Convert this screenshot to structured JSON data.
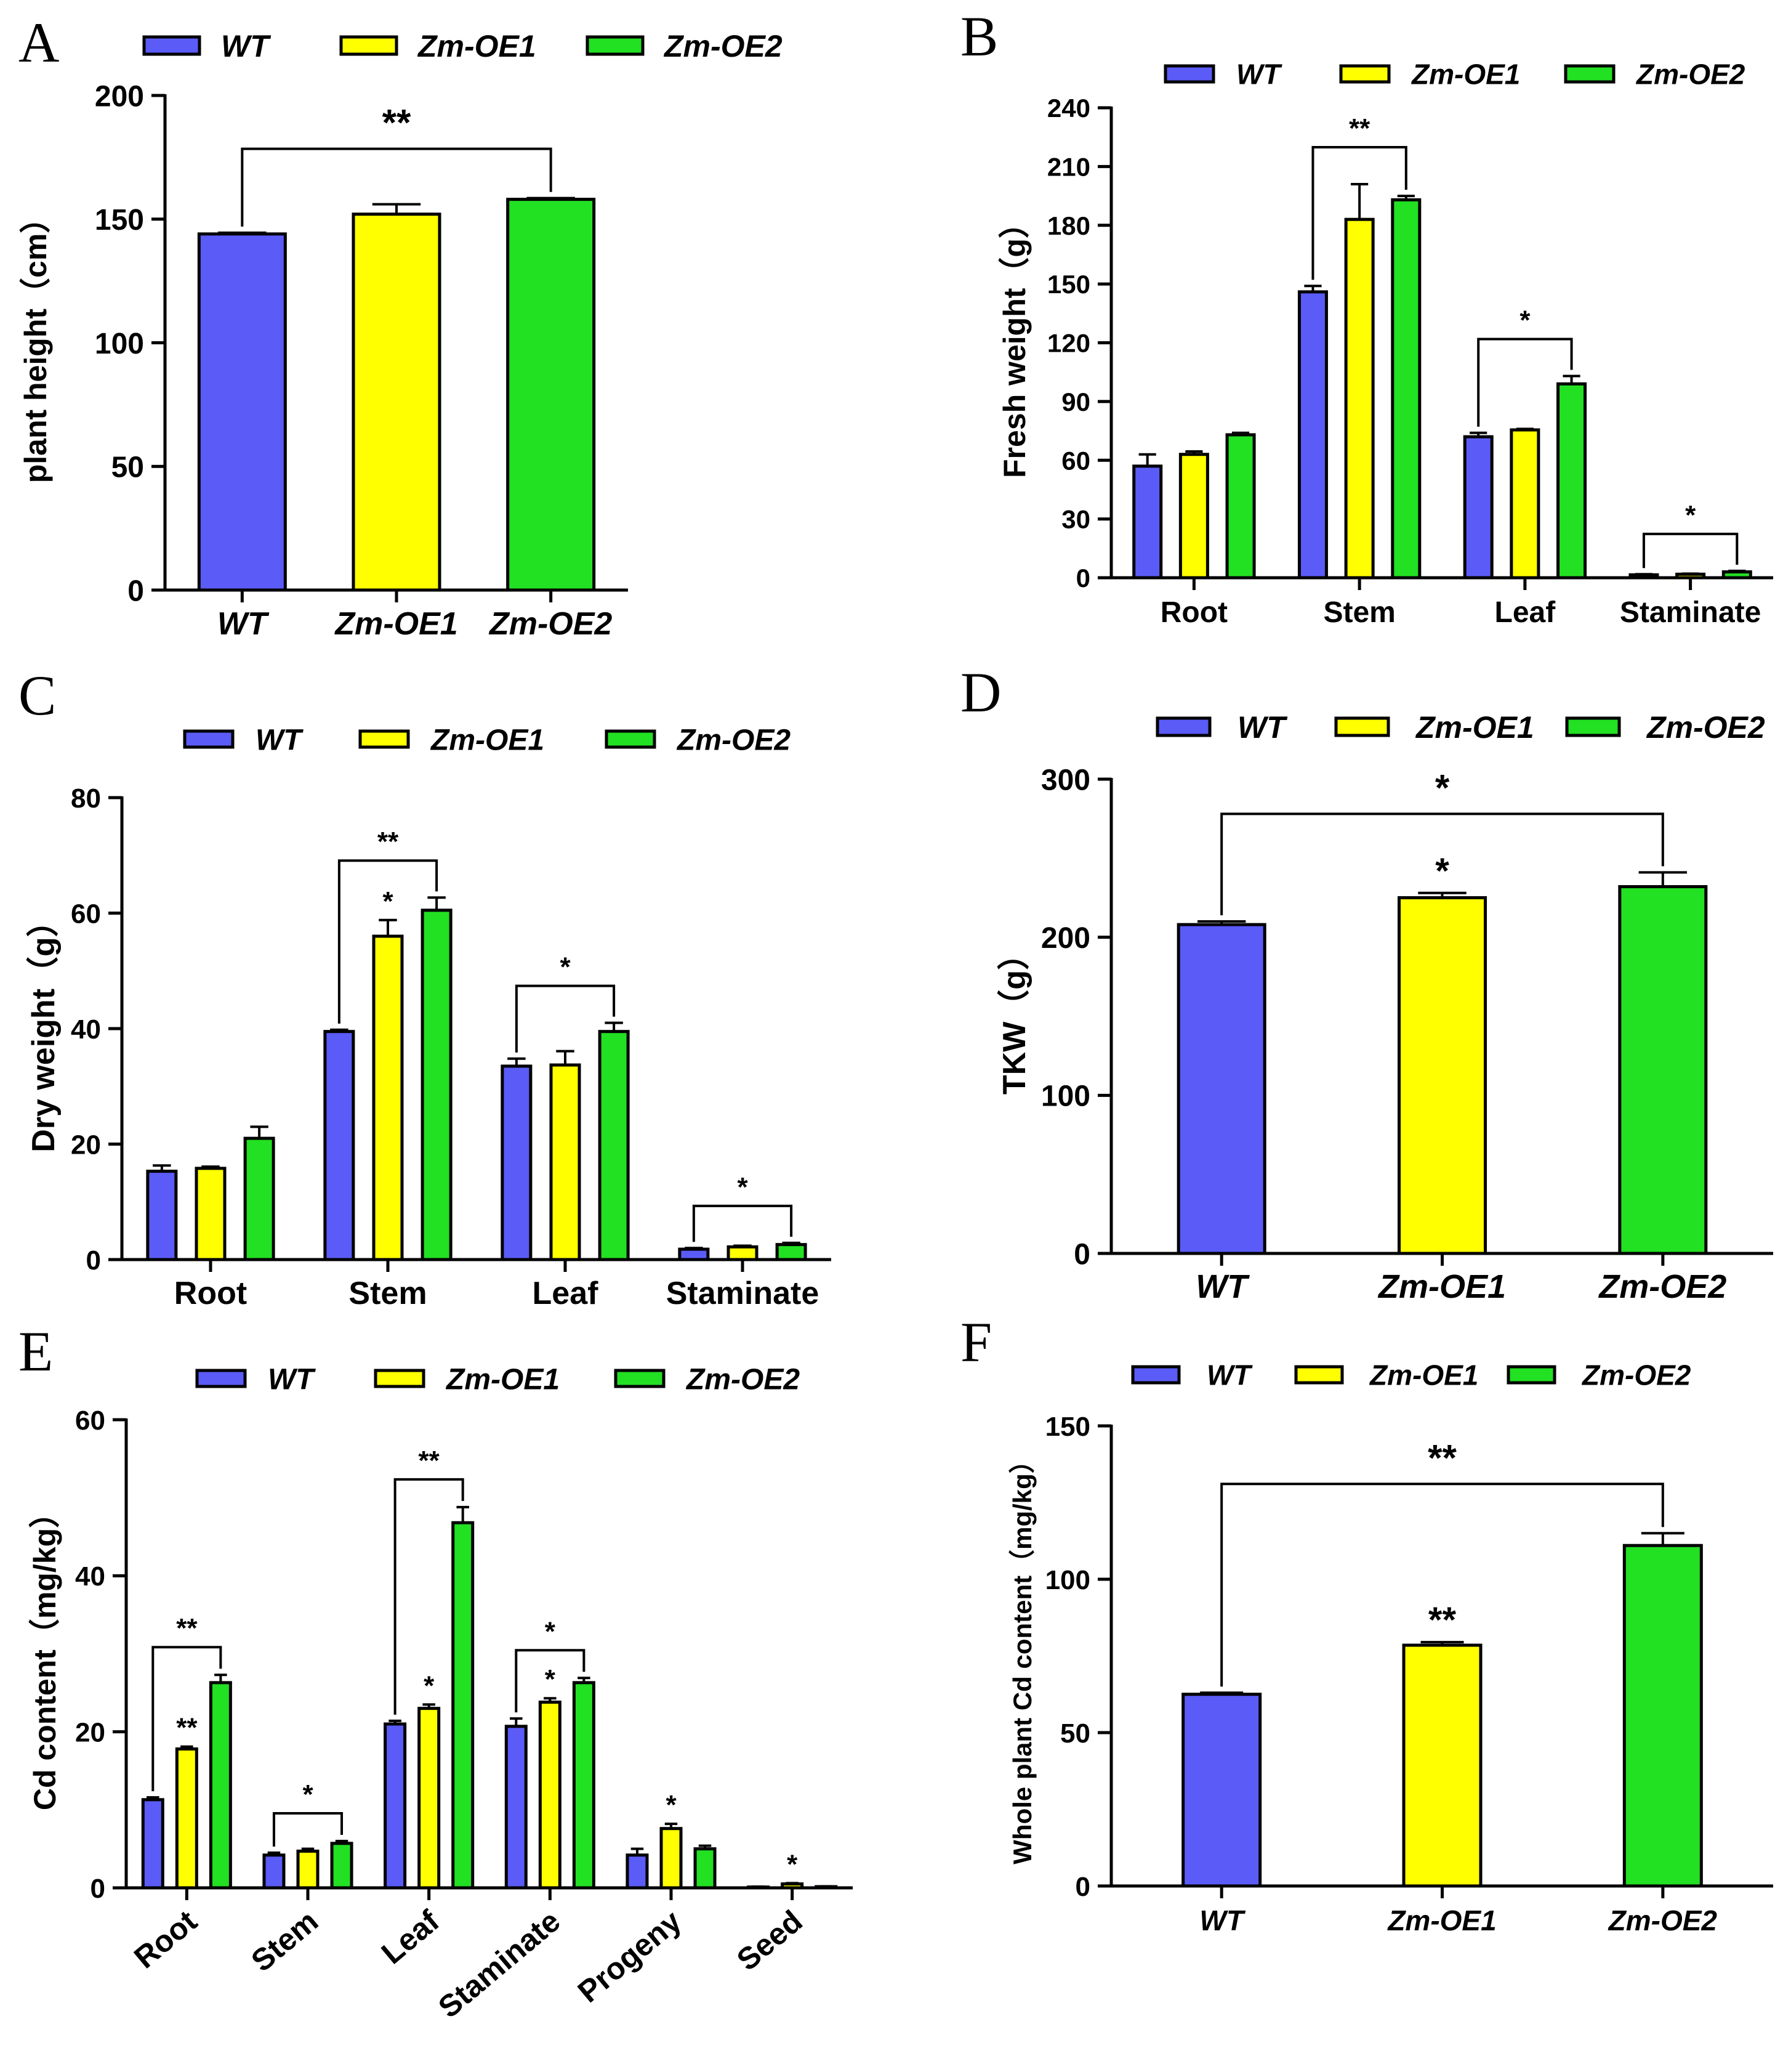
{
  "colors": {
    "WT": "#5b5bf7",
    "Zm-OE1": "#ffff00",
    "Zm-OE2": "#22e022"
  },
  "chart_data": [
    {
      "panel": "A",
      "type": "bar",
      "title": "",
      "xlabel": "",
      "ylabel": "plant height（cm）",
      "ylim": [
        0,
        200
      ],
      "yticks": [
        "0",
        "50",
        "100",
        "150",
        "200"
      ],
      "legend": [
        "WT",
        "Zm-OE1",
        "Zm-OE2"
      ],
      "legend_position": "top",
      "categories": [
        "WT",
        "Zm-OE1",
        "Zm-OE2"
      ],
      "series": [
        {
          "name": "plant height",
          "values": [
            144,
            152,
            158
          ],
          "errors": [
            0.5,
            4,
            0.5
          ]
        }
      ],
      "annotations": [
        {
          "text": "**",
          "from": "WT",
          "to": "Zm-OE2"
        }
      ]
    },
    {
      "panel": "B",
      "type": "bar",
      "title": "",
      "xlabel": "",
      "ylabel": "Fresh weight（g）",
      "ylim": [
        0,
        240
      ],
      "yticks": [
        "0",
        "30",
        "60",
        "90",
        "120",
        "150",
        "180",
        "210",
        "240"
      ],
      "legend": [
        "WT",
        "Zm-OE1",
        "Zm-OE2"
      ],
      "legend_position": "top",
      "categories": [
        "Root",
        "Stem",
        "Leaf",
        "Staminate"
      ],
      "series": [
        {
          "name": "WT",
          "values": [
            57,
            146,
            72,
            1.5
          ],
          "errors": [
            6,
            3,
            2,
            0.3
          ]
        },
        {
          "name": "Zm-OE1",
          "values": [
            63,
            183,
            75.5,
            1.8
          ],
          "errors": [
            1.5,
            18,
            0.5,
            0.3
          ]
        },
        {
          "name": "Zm-OE2",
          "values": [
            73,
            193,
            99,
            3
          ],
          "errors": [
            1,
            2,
            4,
            0.5
          ]
        }
      ],
      "annotations": [
        {
          "text": "**",
          "category": "Stem"
        },
        {
          "text": "*",
          "category": "Leaf"
        },
        {
          "text": "*",
          "category": "Staminate"
        }
      ]
    },
    {
      "panel": "C",
      "type": "bar",
      "title": "",
      "xlabel": "",
      "ylabel": "Dry weight（g）",
      "ylim": [
        0,
        80
      ],
      "yticks": [
        "0",
        "20",
        "40",
        "60",
        "80"
      ],
      "legend": [
        "WT",
        "Zm-OE1",
        "Zm-OE2"
      ],
      "legend_position": "top",
      "categories": [
        "Root",
        "Stem",
        "Leaf",
        "Staminate"
      ],
      "series": [
        {
          "name": "WT",
          "values": [
            15.3,
            39.5,
            33.5,
            1.8
          ],
          "errors": [
            1,
            0.3,
            1.3,
            0.2
          ]
        },
        {
          "name": "Zm-OE1",
          "values": [
            15.8,
            56,
            33.7,
            2.2
          ],
          "errors": [
            0.3,
            2.8,
            2.4,
            0.2
          ]
        },
        {
          "name": "Zm-OE2",
          "values": [
            21,
            60.5,
            39.5,
            2.6
          ],
          "errors": [
            2,
            2.2,
            1.5,
            0.3
          ]
        }
      ],
      "annotations": [
        {
          "text": "**",
          "category": "Stem"
        },
        {
          "text": "*",
          "category": "Stem",
          "series": "Zm-OE1"
        },
        {
          "text": "*",
          "category": "Leaf"
        },
        {
          "text": "*",
          "category": "Staminate"
        }
      ]
    },
    {
      "panel": "D",
      "type": "bar",
      "title": "",
      "xlabel": "",
      "ylabel": "TKW（g）",
      "ylim": [
        0,
        300
      ],
      "yticks": [
        "0",
        "100",
        "200",
        "300"
      ],
      "legend": [
        "WT",
        "Zm-OE1",
        "Zm-OE2"
      ],
      "legend_position": "top",
      "categories": [
        "WT",
        "Zm-OE1",
        "Zm-OE2"
      ],
      "series": [
        {
          "name": "TKW",
          "values": [
            208,
            225,
            232
          ],
          "errors": [
            2,
            3,
            9
          ]
        }
      ],
      "annotations": [
        {
          "text": "*",
          "category": "Zm-OE1"
        },
        {
          "text": "*",
          "from": "WT",
          "to": "Zm-OE2"
        }
      ]
    },
    {
      "panel": "E",
      "type": "bar",
      "title": "",
      "xlabel": "",
      "ylabel": "Cd content（mg/kg）",
      "ylim": [
        0,
        60
      ],
      "yticks": [
        "0",
        "20",
        "40",
        "60"
      ],
      "legend": [
        "WT",
        "Zm-OE1",
        "Zm-OE2"
      ],
      "legend_position": "top",
      "categories": [
        "Root",
        "Stem",
        "Leaf",
        "Staminate",
        "Progeny",
        "Seed"
      ],
      "series": [
        {
          "name": "WT",
          "values": [
            11.3,
            4.2,
            21,
            20.7,
            4.2,
            0.1
          ],
          "errors": [
            0.3,
            0.3,
            0.4,
            1,
            0.8,
            0.05
          ]
        },
        {
          "name": "Zm-OE1",
          "values": [
            17.8,
            4.7,
            23,
            23.8,
            7.6,
            0.5
          ],
          "errors": [
            0.3,
            0.3,
            0.5,
            0.5,
            0.6,
            0.1
          ]
        },
        {
          "name": "Zm-OE2",
          "values": [
            26.3,
            5.7,
            46.8,
            26.3,
            5,
            0.15
          ],
          "errors": [
            1,
            0.3,
            2,
            0.6,
            0.4,
            0.05
          ]
        }
      ],
      "annotations": [
        {
          "text": "**",
          "category": "Root"
        },
        {
          "text": "**",
          "category": "Root",
          "series": "Zm-OE1"
        },
        {
          "text": "*",
          "category": "Stem"
        },
        {
          "text": "**",
          "category": "Leaf"
        },
        {
          "text": "*",
          "category": "Leaf",
          "series": "Zm-OE1"
        },
        {
          "text": "*",
          "category": "Staminate"
        },
        {
          "text": "*",
          "category": "Staminate",
          "series": "Zm-OE1"
        },
        {
          "text": "*",
          "category": "Progeny",
          "series": "Zm-OE1"
        },
        {
          "text": "*",
          "category": "Seed",
          "series": "Zm-OE1"
        }
      ]
    },
    {
      "panel": "F",
      "type": "bar",
      "title": "",
      "xlabel": "",
      "ylabel": "Whole plant Cd content（mg/kg）",
      "ylim": [
        0,
        150
      ],
      "yticks": [
        "0",
        "50",
        "100",
        "150"
      ],
      "legend": [
        "WT",
        "Zm-OE1",
        "Zm-OE2"
      ],
      "legend_position": "top",
      "categories": [
        "WT",
        "Zm-OE1",
        "Zm-OE2"
      ],
      "series": [
        {
          "name": "Whole plant Cd content",
          "values": [
            62.5,
            78.5,
            111
          ],
          "errors": [
            0.5,
            1,
            4
          ]
        }
      ],
      "annotations": [
        {
          "text": "**",
          "category": "Zm-OE1"
        },
        {
          "text": "**",
          "from": "WT",
          "to": "Zm-OE2"
        }
      ]
    }
  ]
}
